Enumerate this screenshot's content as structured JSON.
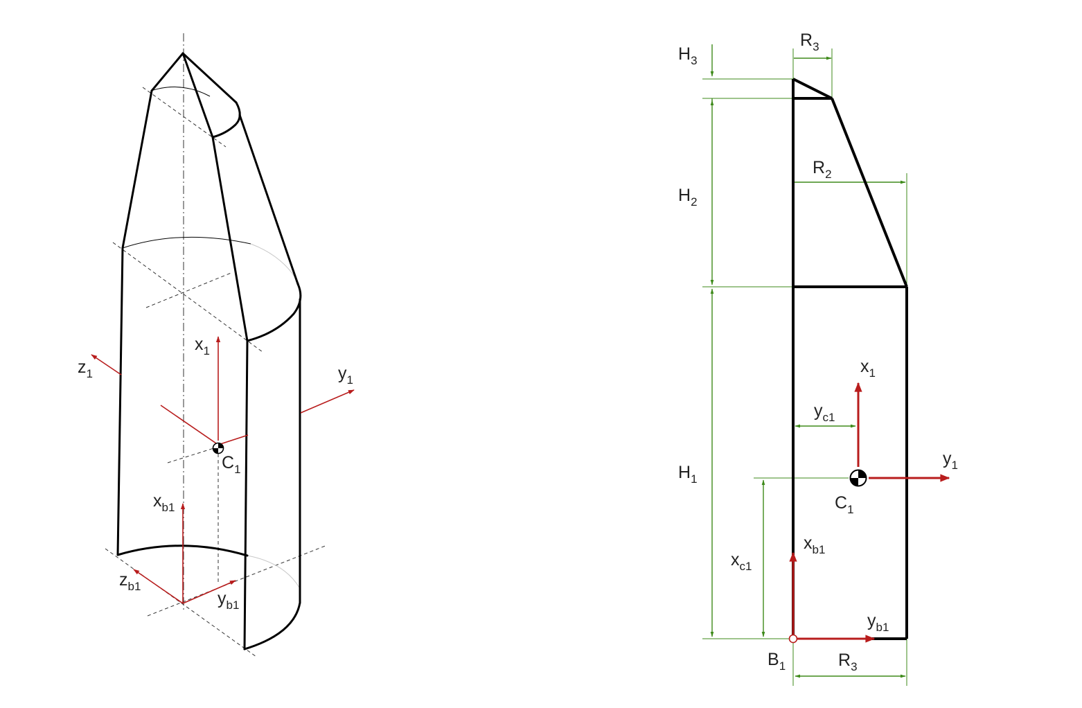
{
  "colors": {
    "outline": "#000000",
    "axis": "#b81c1c",
    "dimension": "#3e8a1a",
    "construction": "#333333",
    "hidden_arc": "#c8c8c8"
  },
  "left_view": {
    "axis_labels": {
      "z1": {
        "main": "z",
        "sub": "1"
      },
      "x1": {
        "main": "x",
        "sub": "1"
      },
      "y1": {
        "main": "y",
        "sub": "1"
      },
      "c1": {
        "main": "C",
        "sub": "1"
      },
      "xb1": {
        "main": "x",
        "sub": "b1"
      },
      "zb1": {
        "main": "z",
        "sub": "b1"
      },
      "yb1": {
        "main": "y",
        "sub": "b1"
      }
    }
  },
  "right_view": {
    "dimension_labels": {
      "h3": {
        "main": "H",
        "sub": "3"
      },
      "r3_top": {
        "main": "R",
        "sub": "3"
      },
      "h2": {
        "main": "H",
        "sub": "2"
      },
      "r2": {
        "main": "R",
        "sub": "2"
      },
      "h1": {
        "main": "H",
        "sub": "1"
      },
      "yc1": {
        "main": "y",
        "sub": "c1"
      },
      "xc1": {
        "main": "x",
        "sub": "c1"
      },
      "r3_bottom": {
        "main": "R",
        "sub": "3"
      }
    },
    "axis_labels": {
      "x1": {
        "main": "x",
        "sub": "1"
      },
      "y1": {
        "main": "y",
        "sub": "1"
      },
      "c1": {
        "main": "C",
        "sub": "1"
      },
      "xb1": {
        "main": "x",
        "sub": "b1"
      },
      "yb1": {
        "main": "y",
        "sub": "b1"
      },
      "b1": {
        "main": "B",
        "sub": "1"
      }
    }
  }
}
